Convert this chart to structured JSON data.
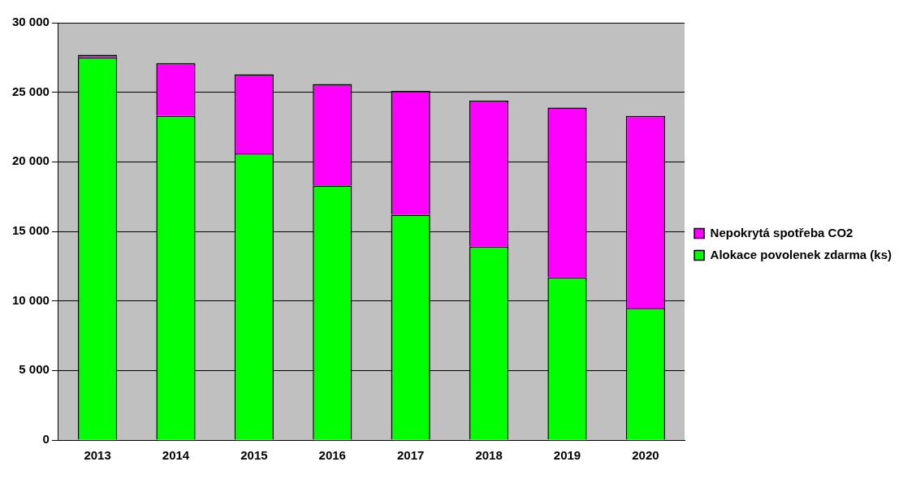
{
  "chart_data": {
    "type": "bar",
    "stacked": true,
    "categories": [
      "2013",
      "2014",
      "2015",
      "2016",
      "2017",
      "2018",
      "2019",
      "2020"
    ],
    "series": [
      {
        "name": "Alokace povolenek zdarma (ks)",
        "color": "#00ff00",
        "values": [
          27500,
          23300,
          20600,
          18300,
          16200,
          13900,
          11700,
          9500
        ]
      },
      {
        "name": "Nepokrytá spotřeba CO2",
        "color": "#ff00ff",
        "values": [
          200,
          3800,
          5700,
          7300,
          8900,
          10500,
          12200,
          13800
        ]
      }
    ],
    "ylim": [
      0,
      30000
    ],
    "yticks": [
      {
        "value": 0,
        "label": "0"
      },
      {
        "value": 5000,
        "label": "5 000"
      },
      {
        "value": 10000,
        "label": "10 000"
      },
      {
        "value": 15000,
        "label": "15 000"
      },
      {
        "value": 20000,
        "label": "20 000"
      },
      {
        "value": 25000,
        "label": "25 000"
      },
      {
        "value": 30000,
        "label": "30 000"
      }
    ],
    "grid": "y",
    "legend": "right"
  }
}
